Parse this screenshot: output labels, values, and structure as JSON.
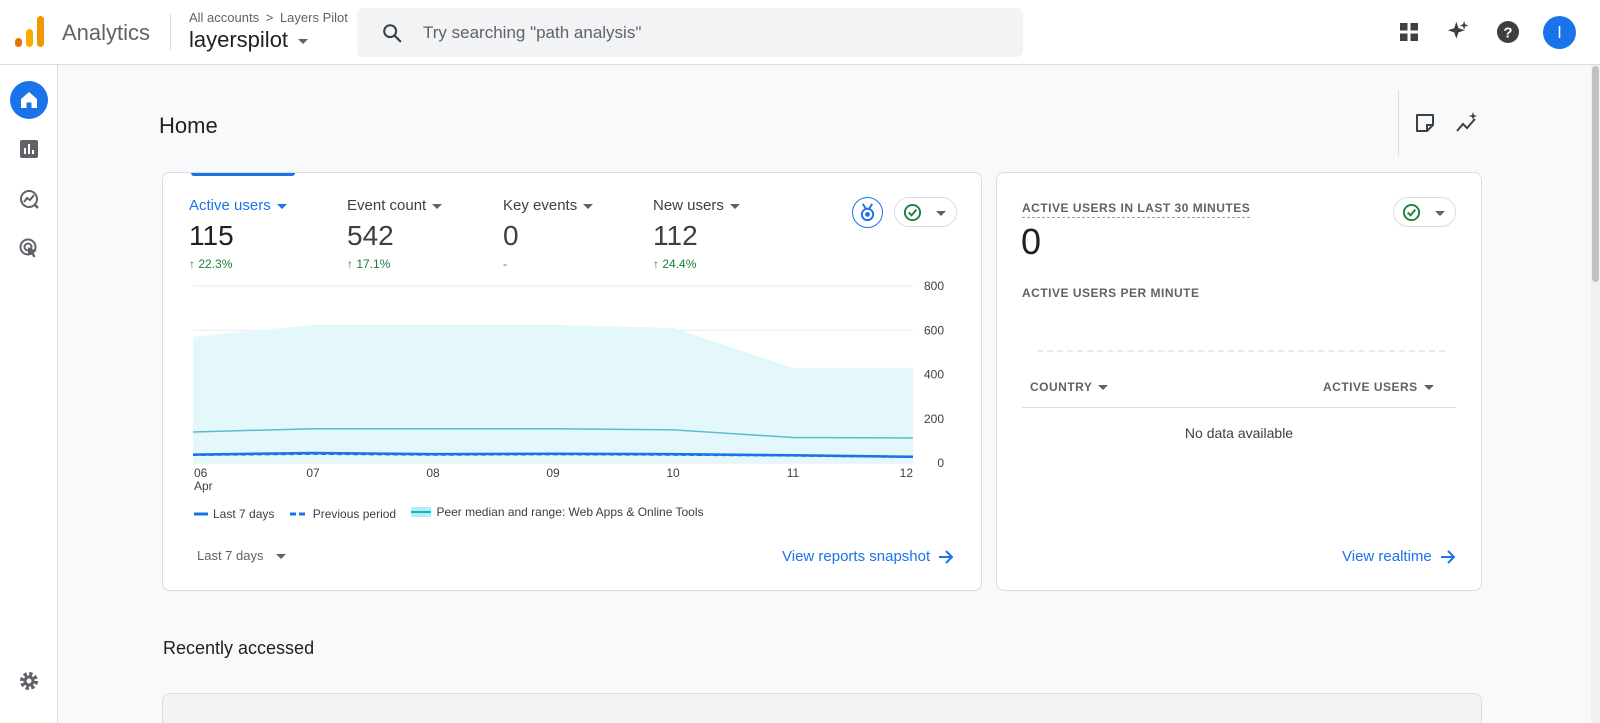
{
  "app": {
    "title": "Analytics",
    "breadcrumb": {
      "root": "All accounts",
      "separator": ">",
      "account": "Layers Pilot"
    },
    "property": "layerspilot",
    "search_placeholder": "Try searching \"path analysis\"",
    "avatar_letter": "l",
    "accent_color": "#1a73e8"
  },
  "topbar_icons": [
    "apps-grid-icon",
    "sparkle-icon",
    "help-icon"
  ],
  "leftnav": {
    "items": [
      "home-icon",
      "reports-icon",
      "explore-icon",
      "advertising-icon"
    ],
    "bottom": "admin-gear-icon",
    "active": "home"
  },
  "page": {
    "title": "Home",
    "header_icons": [
      "insights-note-icon",
      "insights-sparkline-icon"
    ]
  },
  "overview": {
    "metrics": [
      {
        "label": "Active users",
        "value": "115",
        "change": "22.3%",
        "direction": "up",
        "active": true
      },
      {
        "label": "Event count",
        "value": "542",
        "change": "17.1%",
        "direction": "up",
        "active": false
      },
      {
        "label": "Key events",
        "value": "0",
        "change": "-",
        "direction": "none",
        "active": false
      },
      {
        "label": "New users",
        "value": "112",
        "change": "24.4%",
        "direction": "up",
        "active": false
      }
    ],
    "legend": {
      "current": "Last 7 days",
      "previous": "Previous period",
      "peer": "Peer median and range: Web Apps & Online Tools"
    },
    "date_range": "Last 7 days",
    "link": "View reports snapshot"
  },
  "chart_data": {
    "type": "line",
    "x": [
      "06",
      "07",
      "08",
      "09",
      "10",
      "11",
      "12"
    ],
    "x_sublabel": "Apr",
    "ylim": [
      0,
      800
    ],
    "yticks": [
      "800",
      "600",
      "400",
      "200",
      "0"
    ],
    "y_axis_side": "right",
    "grid": true,
    "legend_position": "bottom",
    "series": [
      {
        "name": "Last 7 days",
        "values": [
          38,
          45,
          40,
          42,
          40,
          35,
          28
        ],
        "color": "#1a73e8",
        "style": "solid"
      },
      {
        "name": "Previous period",
        "values": [
          35,
          40,
          36,
          38,
          36,
          32,
          26
        ],
        "color": "#1a73e8",
        "style": "dashed"
      },
      {
        "name": "Peer median and range: Web Apps & Online Tools",
        "median": [
          140,
          155,
          155,
          155,
          150,
          115,
          113
        ],
        "range_low": [
          0,
          0,
          0,
          0,
          0,
          0,
          0
        ],
        "range_high": [
          570,
          625,
          625,
          625,
          610,
          430,
          430
        ],
        "color": "#12b5cb",
        "style": "band"
      }
    ]
  },
  "realtime": {
    "title": "ACTIVE USERS IN LAST 30 MINUTES",
    "value": "0",
    "per_minute_label": "ACTIVE USERS PER MINUTE",
    "table": {
      "col1": "COUNTRY",
      "col2": "ACTIVE USERS",
      "empty": "No data available"
    },
    "link": "View realtime"
  },
  "recent": {
    "title": "Recently accessed"
  },
  "colors": {
    "positive": "#188038",
    "peer": "#12b5cb",
    "ok_check": "#188038"
  }
}
